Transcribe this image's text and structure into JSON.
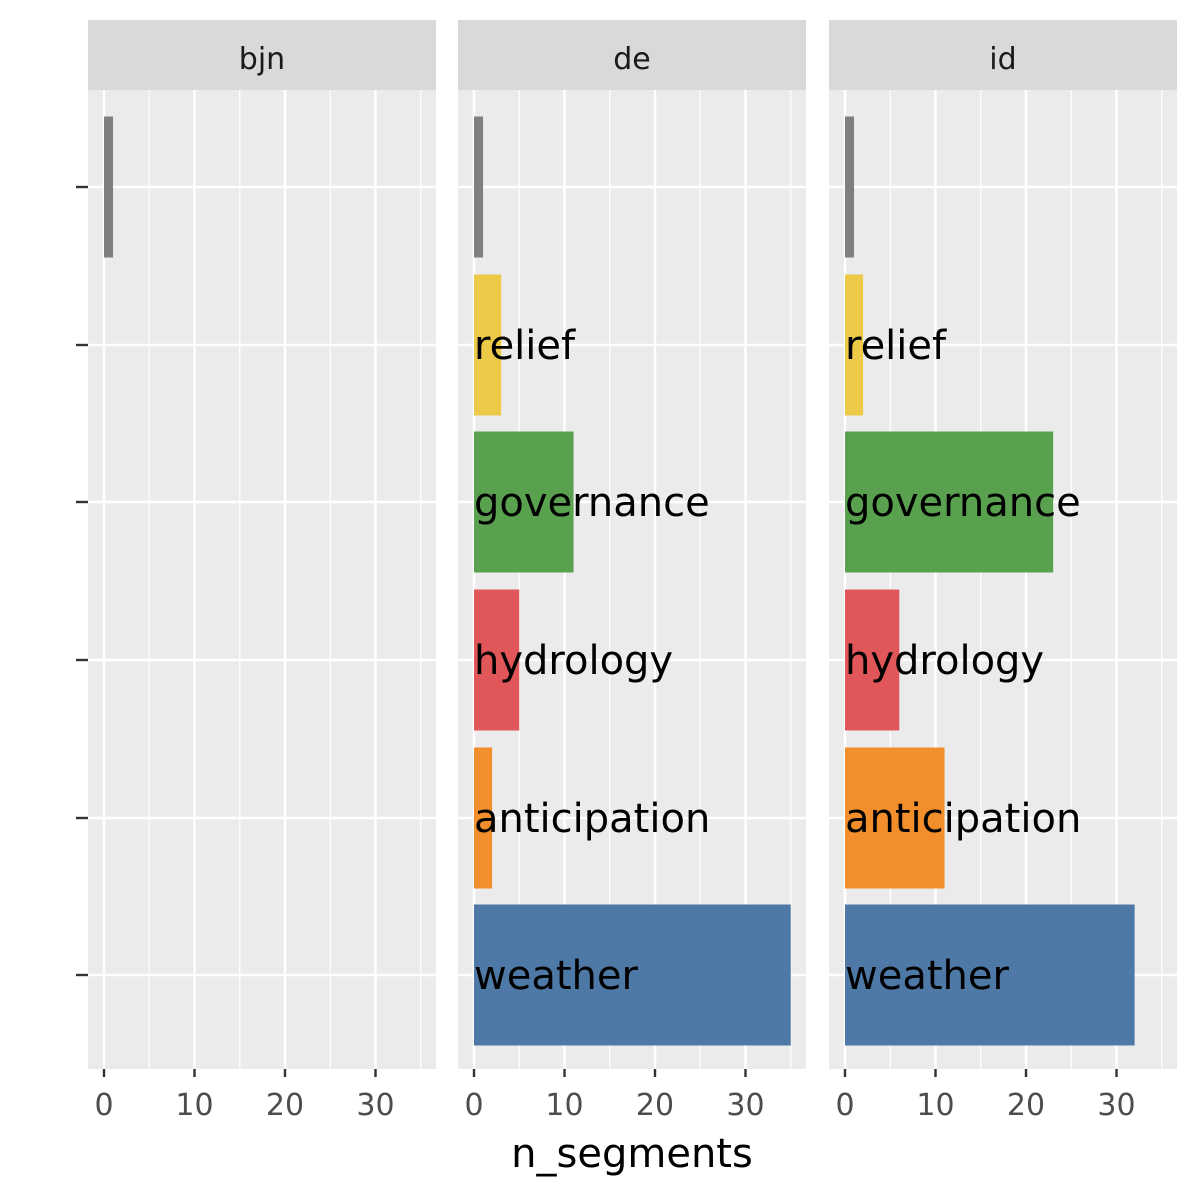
{
  "chart_data": {
    "type": "bar",
    "orientation": "horizontal",
    "facet_variable": "language",
    "xlabel": "n_segments",
    "ylabel": "",
    "xlim": [
      0,
      35
    ],
    "x_ticks": [
      0,
      10,
      20,
      30
    ],
    "grid": true,
    "legend": "none",
    "categories": [
      "weather",
      "anticipation",
      "hydrology",
      "governance",
      "relief",
      ""
    ],
    "category_colors": {
      "weather": "#4e79a7",
      "anticipation": "#f28e2b",
      "hydrology": "#e15759",
      "governance": "#59a14f",
      "relief": "#edc948",
      "": "#7f7f7f"
    },
    "facets": [
      {
        "name": "bjn",
        "bars": [
          {
            "category": "",
            "value": 1
          }
        ]
      },
      {
        "name": "de",
        "bars": [
          {
            "category": "",
            "value": 1
          },
          {
            "category": "relief",
            "value": 3
          },
          {
            "category": "governance",
            "value": 11
          },
          {
            "category": "hydrology",
            "value": 5
          },
          {
            "category": "anticipation",
            "value": 2
          },
          {
            "category": "weather",
            "value": 35
          }
        ]
      },
      {
        "name": "id",
        "bars": [
          {
            "category": "",
            "value": 1
          },
          {
            "category": "relief",
            "value": 2
          },
          {
            "category": "governance",
            "value": 23
          },
          {
            "category": "hydrology",
            "value": 6
          },
          {
            "category": "anticipation",
            "value": 11
          },
          {
            "category": "weather",
            "value": 32
          }
        ]
      }
    ]
  }
}
